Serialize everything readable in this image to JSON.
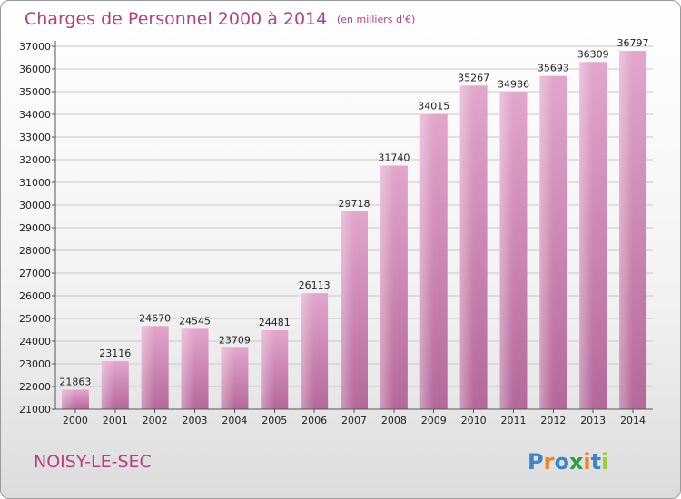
{
  "chart_data": {
    "type": "bar",
    "title": "Charges de Personnel 2000 à 2014",
    "subtitle": "(en milliers d'€)",
    "categories": [
      "2000",
      "2001",
      "2002",
      "2003",
      "2004",
      "2005",
      "2006",
      "2007",
      "2008",
      "2009",
      "2010",
      "2011",
      "2012",
      "2013",
      "2014"
    ],
    "values": [
      21863,
      23116,
      24670,
      24545,
      23709,
      24481,
      26113,
      29718,
      31740,
      34015,
      35267,
      34986,
      35693,
      36309,
      36797
    ],
    "ylim": [
      21000,
      37000
    ],
    "yticks": [
      21000,
      22000,
      23000,
      24000,
      25000,
      26000,
      27000,
      28000,
      29000,
      30000,
      31000,
      32000,
      33000,
      34000,
      35000,
      36000,
      37000
    ],
    "grid": true,
    "bar_color_top": "#e2a6cb",
    "bar_color_bottom": "#b5689a"
  },
  "footer": {
    "city": "NOISY-LE-SEC",
    "logo_letters": [
      "P",
      "r",
      "o",
      "x",
      "i",
      "t",
      "i"
    ],
    "logo_colors": [
      "#3a86c8",
      "#e8891d",
      "#3a86c8",
      "#2f9e3f",
      "#e8891d",
      "#3a86c8",
      "#9acd32"
    ]
  }
}
